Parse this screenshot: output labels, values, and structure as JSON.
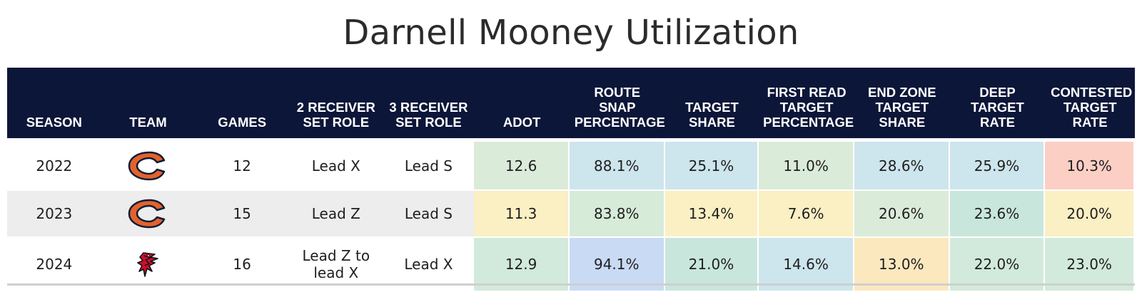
{
  "chart_data": {
    "type": "table",
    "title": "Darnell Mooney Utilization",
    "columns": [
      "SEASON",
      "TEAM",
      "GAMES",
      "2 RECEIVER SET ROLE",
      "3 RECEIVER SET ROLE",
      "ADOT",
      "ROUTE SNAP PERCENTAGE",
      "TARGET SHARE",
      "FIRST READ TARGET PERCENTAGE",
      "END ZONE TARGET SHARE",
      "DEEP TARGET RATE",
      "CONTESTED TARGET RATE"
    ],
    "rows": [
      {
        "season": "2022",
        "team_logo": "chicago-bears-c-logo-icon",
        "games": "12",
        "role_2wr": "Lead X",
        "role_3wr": "Lead S",
        "metrics": [
          "12.6",
          "88.1%",
          "25.1%",
          "11.0%",
          "28.6%",
          "25.9%",
          "10.3%"
        ],
        "colors": [
          "#dbebd9",
          "#cde5ec",
          "#cde5ec",
          "#dbebd9",
          "#cde5ec",
          "#cde5ec",
          "#fccfc4"
        ]
      },
      {
        "season": "2023",
        "team_logo": "chicago-bears-c-logo-icon",
        "games": "15",
        "role_2wr": "Lead Z",
        "role_3wr": "Lead S",
        "metrics": [
          "11.3",
          "83.8%",
          "13.4%",
          "7.6%",
          "20.6%",
          "23.6%",
          "20.0%"
        ],
        "colors": [
          "#fbefc4",
          "#d7ebd9",
          "#fbefc4",
          "#fbefc4",
          "#dbebd9",
          "#c9e6dd",
          "#fbefc4"
        ]
      },
      {
        "season": "2024",
        "team_logo": "atlanta-falcons-logo-icon",
        "games": "16",
        "role_2wr": "Lead Z to lead X",
        "role_3wr": "Lead X",
        "metrics": [
          "12.9",
          "94.1%",
          "21.0%",
          "14.6%",
          "13.0%",
          "22.0%",
          "23.0%"
        ],
        "colors": [
          "#d2eadb",
          "#c9daf5",
          "#c9e6dd",
          "#cde5ec",
          "#fbe8bf",
          "#d2eadb",
          "#d2eadb"
        ]
      }
    ]
  },
  "header_bg": "#0c1639",
  "bears_colors": {
    "navy": "#0b1c3a",
    "orange": "#e4622a"
  },
  "falcons_colors": {
    "red": "#c8102e",
    "black": "#111111"
  }
}
